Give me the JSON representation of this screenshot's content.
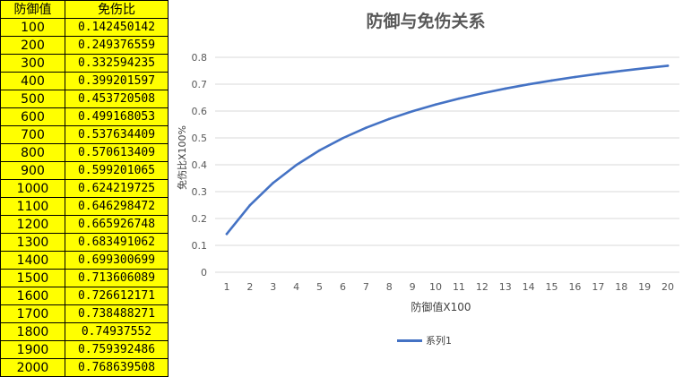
{
  "table": {
    "headers": [
      "防御值",
      "免伤比"
    ],
    "rows": [
      [
        "100",
        "0.142450142"
      ],
      [
        "200",
        "0.249376559"
      ],
      [
        "300",
        "0.332594235"
      ],
      [
        "400",
        "0.399201597"
      ],
      [
        "500",
        "0.453720508"
      ],
      [
        "600",
        "0.499168053"
      ],
      [
        "700",
        "0.537634409"
      ],
      [
        "800",
        "0.570613409"
      ],
      [
        "900",
        "0.599201065"
      ],
      [
        "1000",
        "0.624219725"
      ],
      [
        "1100",
        "0.646298472"
      ],
      [
        "1200",
        "0.665926748"
      ],
      [
        "1300",
        "0.683491062"
      ],
      [
        "1400",
        "0.699300699"
      ],
      [
        "1500",
        "0.713606089"
      ],
      [
        "1600",
        "0.726612171"
      ],
      [
        "1700",
        "0.738488271"
      ],
      [
        "1800",
        "0.74937552"
      ],
      [
        "1900",
        "0.759392486"
      ],
      [
        "2000",
        "0.768639508"
      ]
    ],
    "background_color": "#ffff00"
  },
  "chart_data": {
    "type": "line",
    "title": "防御与免伤关系",
    "xlabel": "防御值X100",
    "ylabel": "免伤比X100%",
    "x": [
      1,
      2,
      3,
      4,
      5,
      6,
      7,
      8,
      9,
      10,
      11,
      12,
      13,
      14,
      15,
      16,
      17,
      18,
      19,
      20
    ],
    "series": [
      {
        "name": "系列1",
        "color": "#4472c4",
        "values": [
          0.142450142,
          0.249376559,
          0.332594235,
          0.399201597,
          0.453720508,
          0.499168053,
          0.537634409,
          0.570613409,
          0.599201065,
          0.624219725,
          0.646298472,
          0.665926748,
          0.683491062,
          0.699300699,
          0.713606089,
          0.726612171,
          0.738488271,
          0.74937552,
          0.759392486,
          0.768639508
        ]
      }
    ],
    "ylim": [
      0,
      0.8
    ],
    "yticks": [
      "0",
      "0.1",
      "0.2",
      "0.3",
      "0.4",
      "0.5",
      "0.6",
      "0.7",
      "0.8"
    ],
    "xticks": [
      "1",
      "2",
      "3",
      "4",
      "5",
      "6",
      "7",
      "8",
      "9",
      "10",
      "11",
      "12",
      "13",
      "14",
      "15",
      "16",
      "17",
      "18",
      "19",
      "20"
    ],
    "grid": true,
    "legend_position": "bottom"
  }
}
